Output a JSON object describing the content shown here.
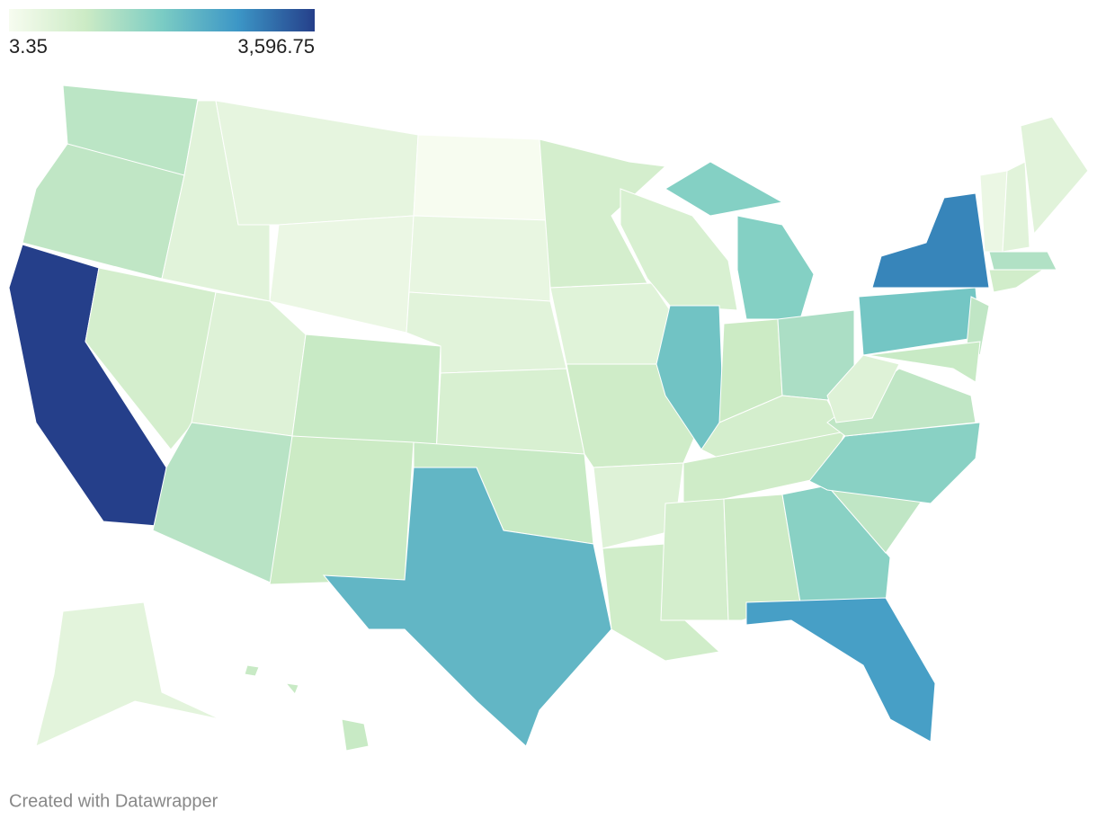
{
  "chart_data": {
    "type": "choropleth",
    "legend": {
      "min": 3.35,
      "max": 3596.75,
      "min_label": "3.35",
      "max_label": "3,596.75"
    },
    "scale_colors": [
      "#f7fcf0",
      "#ccebc5",
      "#7bccc4",
      "#3c96c6",
      "#253f8a"
    ],
    "values": [
      330,
      300,
      3596.75,
      150,
      60,
      40,
      20,
      80,
      350,
      250,
      230,
      3.35,
      30,
      60,
      120,
      250,
      1300,
      150,
      70,
      200,
      80,
      190,
      120,
      1050,
      800,
      230,
      450,
      150,
      200,
      150,
      220,
      750,
      1800,
      300,
      750,
      300,
      80,
      1000,
      2300,
      300,
      250,
      400,
      180,
      20,
      60,
      60,
      50,
      250
    ],
    "footer": "Created with Datawrapper"
  }
}
